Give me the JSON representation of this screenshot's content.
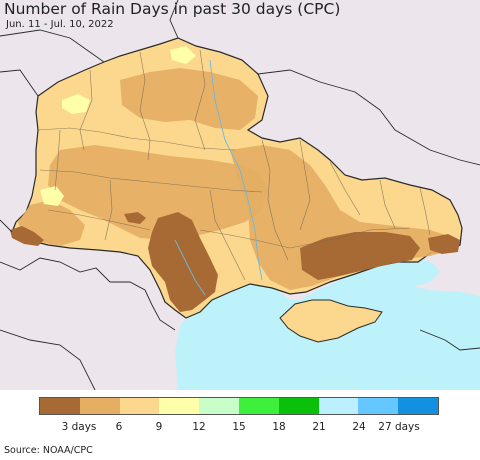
{
  "title": "Number of Rain Days in past 30 days (CPC)",
  "subtitle": "Jun. 11 - Jul. 10, 2022",
  "legend": {
    "colors": [
      "#a86a35",
      "#e4ae63",
      "#fbd88e",
      "#ffffaa",
      "#c8ffc8",
      "#3cf03c",
      "#0ac00a",
      "#bcefff",
      "#64c8ff",
      "#1490e0"
    ],
    "labels": [
      "3 days",
      "6",
      "9",
      "12",
      "15",
      "18",
      "21",
      "24",
      "27 days"
    ]
  },
  "source": "Source: NOAA/CPC",
  "colors": {
    "land_outside": "#ece6ec",
    "sea": "#bdf2fb",
    "border": "#2a2a2a",
    "oblast_border": "#7a6a50"
  }
}
